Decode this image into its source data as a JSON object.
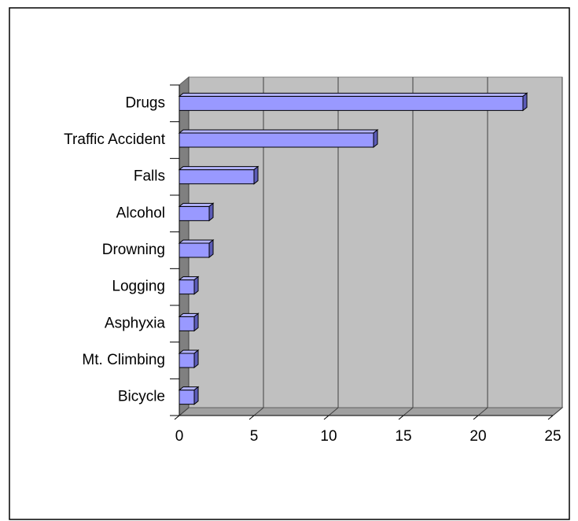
{
  "chart_data": {
    "type": "bar",
    "orientation": "horizontal",
    "categories": [
      "Drugs",
      "Traffic Accident",
      "Falls",
      "Alcohol",
      "Drowning",
      "Logging",
      "Asphyxia",
      "Mt. Climbing",
      "Bicycle"
    ],
    "values": [
      23,
      13,
      5,
      2,
      2,
      1,
      1,
      1,
      1
    ],
    "color": "#9999ff",
    "xlim": [
      0,
      25
    ],
    "xticks": [
      0,
      5,
      10,
      15,
      20,
      25
    ],
    "grid": true
  }
}
